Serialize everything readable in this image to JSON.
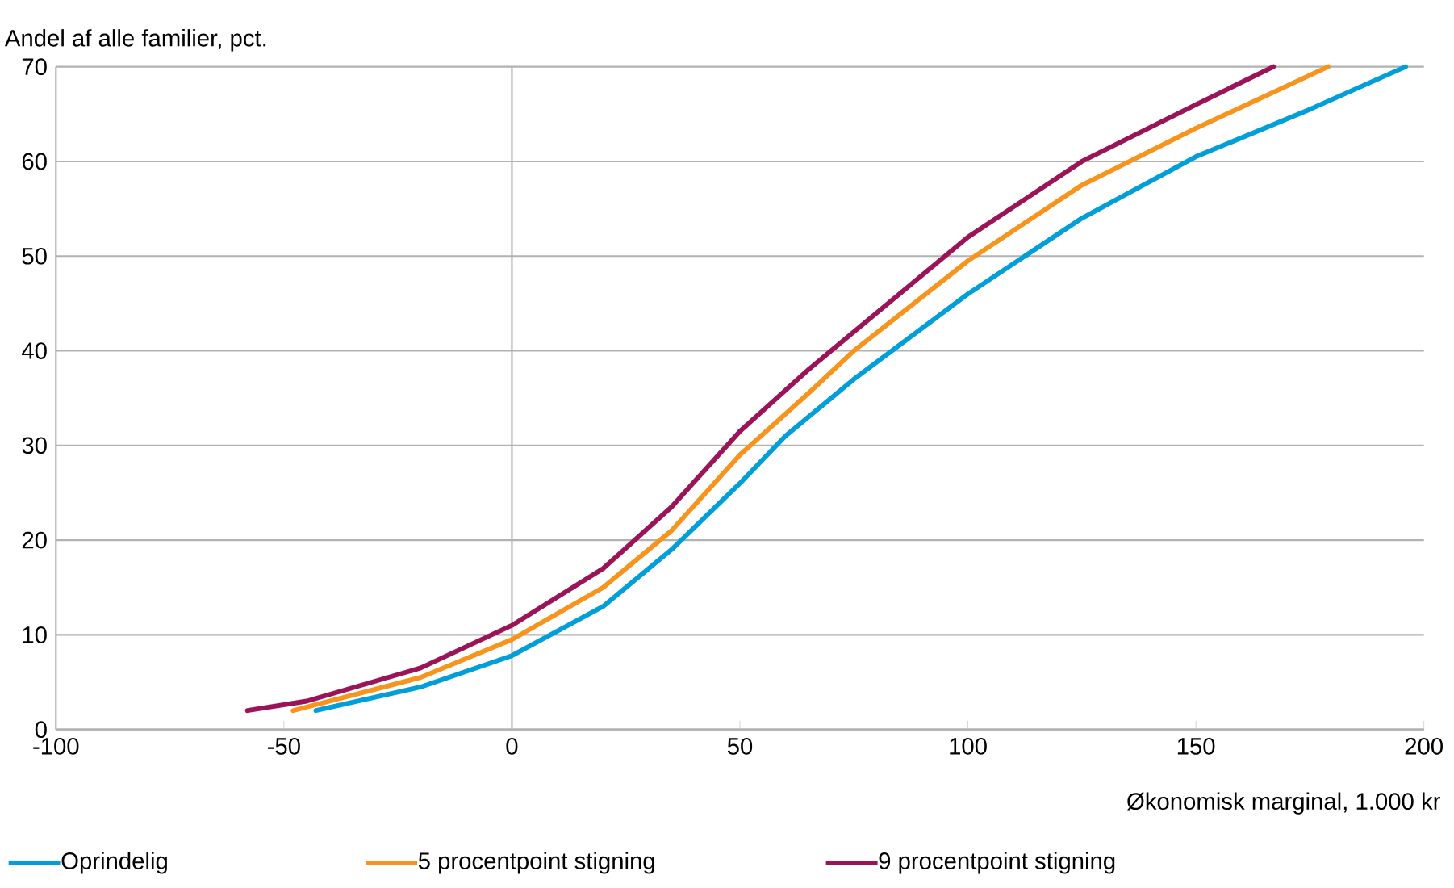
{
  "chart_data": {
    "type": "line",
    "ylabel": "Andel af alle familier, pct.",
    "xlabel": "Økonomisk marginal, 1.000 kr",
    "xlim": [
      -100,
      200
    ],
    "xticks": [
      -100,
      -50,
      0,
      50,
      100,
      150,
      200
    ],
    "ylim": [
      0,
      70
    ],
    "yticks": [
      0,
      10,
      20,
      30,
      40,
      50,
      60,
      70
    ],
    "grid": "y",
    "legend": "bottom",
    "marker": "none",
    "line_style": "solid",
    "ref_lines": [
      {
        "axis": "x",
        "value": 0,
        "color": "#b3b3b3"
      }
    ],
    "series": [
      {
        "name": "Oprindelig",
        "color": "#009fda",
        "x": [
          -43,
          -20,
          0,
          20,
          35,
          50,
          60,
          75,
          100,
          125,
          150,
          175,
          196
        ],
        "values": [
          2,
          4.5,
          7.8,
          13,
          19,
          26,
          31,
          37,
          46,
          54,
          60.5,
          65.5,
          70
        ]
      },
      {
        "name": "5 procentpoint stigning",
        "color": "#f7941d",
        "x": [
          -48,
          -20,
          0,
          20,
          35,
          50,
          65,
          75,
          100,
          125,
          150,
          179
        ],
        "values": [
          2,
          5.5,
          9.5,
          15,
          21,
          29,
          35.5,
          40,
          49.5,
          57.5,
          63.5,
          70
        ]
      },
      {
        "name": "9 procentpoint stigning",
        "color": "#9b1458",
        "x": [
          -58,
          -45,
          -20,
          0,
          20,
          35,
          50,
          65,
          75,
          100,
          125,
          150,
          167
        ],
        "values": [
          2,
          3,
          6.5,
          11,
          17,
          23.5,
          31.5,
          38,
          42,
          52,
          60,
          66,
          70
        ]
      }
    ]
  }
}
